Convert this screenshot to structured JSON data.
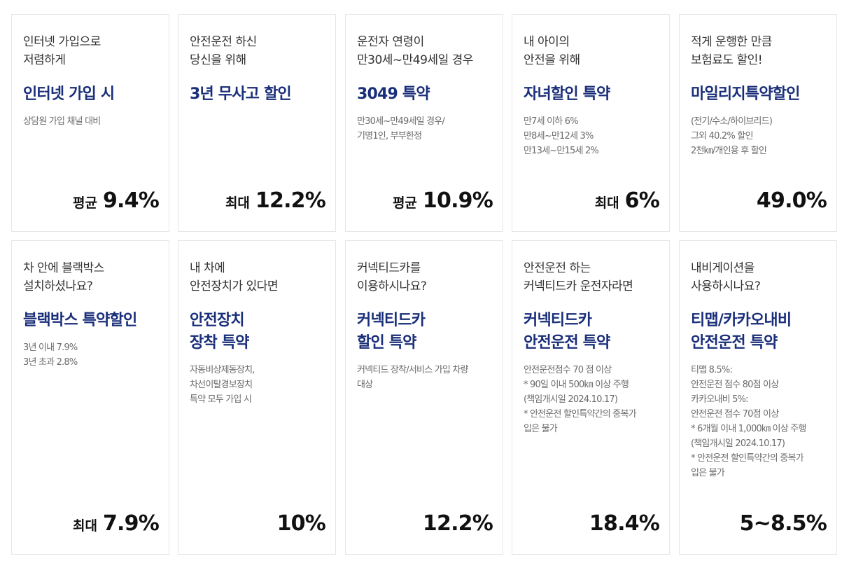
{
  "cards": [
    {
      "intro": "인터넷 가입으로\n저렴하게",
      "title": "인터넷 가입 시",
      "desc": "상담원 가입 채널 대비",
      "rate_prefix": "평균",
      "rate_value": "9.4%"
    },
    {
      "intro": "안전운전 하신\n당신을 위해",
      "title": "3년 무사고 할인",
      "desc": "",
      "rate_prefix": "최대",
      "rate_value": "12.2%"
    },
    {
      "intro": "운전자 연령이\n만30세~만49세일 경우",
      "title": "3049 특약",
      "desc": "만30세~만49세일 경우/\n기명1인, 부부한정",
      "rate_prefix": "평균",
      "rate_value": "10.9%"
    },
    {
      "intro": "내 아이의\n안전을 위해",
      "title": "자녀할인 특약",
      "desc": "만7세 이하 6%\n만8세~만12세 3%\n만13세~만15세 2%",
      "rate_prefix": "최대",
      "rate_value": "6%"
    },
    {
      "intro": "적게 운행한 만큼\n보험료도 할인!",
      "title": "마일리지특약할인",
      "desc": "(전기/수소/하이브리드)\n그외 40.2% 할인\n2천㎞/개인용 후 할인",
      "rate_prefix": "",
      "rate_value": "49.0%"
    },
    {
      "intro": "차 안에 블랙박스\n설치하셨나요?",
      "title": "블랙박스 특약할인",
      "desc": "3년 이내 7.9%\n3년 초과 2.8%",
      "rate_prefix": "최대",
      "rate_value": "7.9%"
    },
    {
      "intro": "내 차에\n안전장치가 있다면",
      "title": "안전장치\n장착 특약",
      "desc": "자동비상제동장치,\n차선이탈경보장치\n특약 모두 가입 시",
      "rate_prefix": "",
      "rate_value": "10%"
    },
    {
      "intro": "커넥티드카를\n이용하시나요?",
      "title": "커넥티드카\n할인 특약",
      "desc": "커넥티드 장착/서비스 가입 차량\n대상",
      "rate_prefix": "",
      "rate_value": "12.2%"
    },
    {
      "intro": "안전운전 하는\n커넥티드카 운전자라면",
      "title": "커넥티드카\n안전운전 특약",
      "desc": "안전운전점수 70 점 이상\n* 90일 이내 500㎞ 이상 주행\n(책임개시일 2024.10.17)\n* 안전운전 할인특약간의 중복가\n입은 불가",
      "rate_prefix": "",
      "rate_value": "18.4%"
    },
    {
      "intro": "내비게이션을\n사용하시나요?",
      "title": "티맵/카카오내비\n안전운전 특약",
      "desc": "티맵 8.5%:\n안전운전 점수 80점 이상\n카카오내비 5%:\n안전운전 점수 70점 이상\n* 6개월 이내 1,000㎞ 이상 주행\n(책임개시일 2024.10.17)\n* 안전운전 할인특약간의 중복가\n입은 불가",
      "rate_prefix": "",
      "rate_value": "5~8.5%"
    }
  ]
}
